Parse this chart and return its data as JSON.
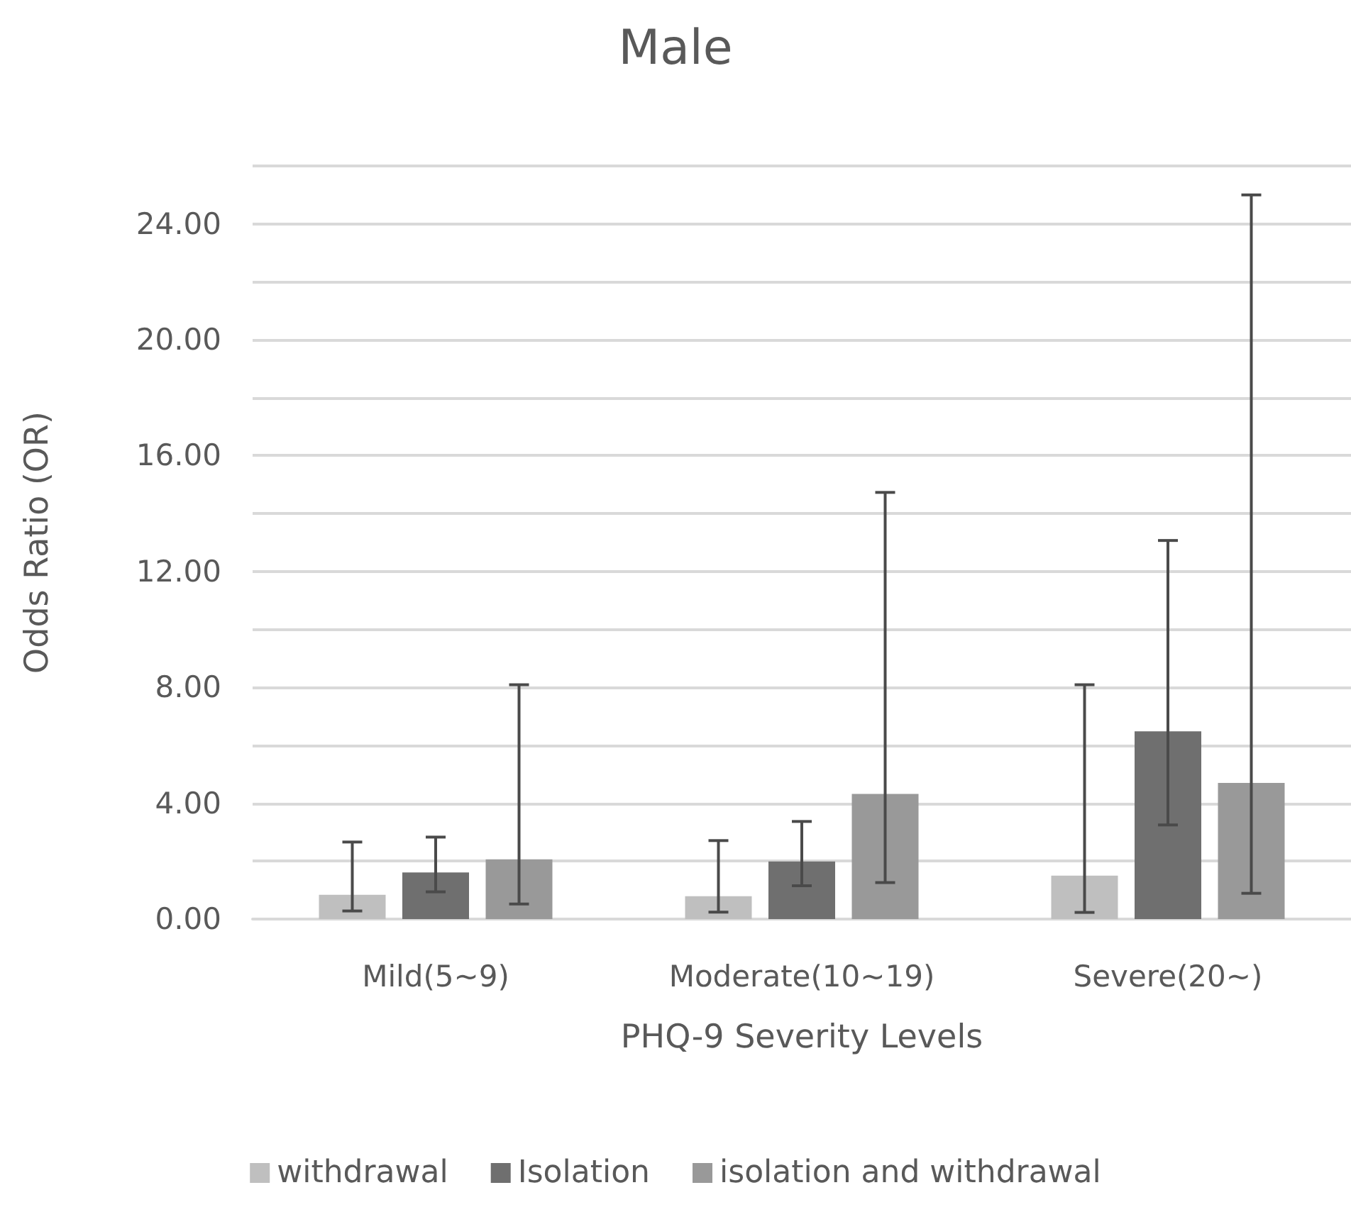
{
  "chart_data": {
    "type": "bar",
    "title": "Male",
    "xlabel": "PHQ-9 Severity Levels",
    "ylabel": "Odds Ratio (OR)",
    "categories": [
      "Mild(5~9)",
      "Moderate(10~19)",
      "Severe(20~)"
    ],
    "series": [
      {
        "name": "withdrawal",
        "color": "#bfbfbf",
        "values": [
          0.84,
          0.79,
          1.5
        ],
        "errors": [
          [
            0.28,
            2.66
          ],
          [
            0.24,
            2.71
          ],
          [
            0.23,
            8.09
          ]
        ]
      },
      {
        "name": "Isolation",
        "color": "#6f6f6f",
        "values": [
          1.61,
          1.99,
          6.48
        ],
        "errors": [
          [
            0.94,
            2.83
          ],
          [
            1.15,
            3.37
          ],
          [
            3.25,
            13.07
          ]
        ]
      },
      {
        "name": "isolation and withdrawal",
        "color": "#999999",
        "values": [
          2.06,
          4.32,
          4.7
        ],
        "errors": [
          [
            0.52,
            8.09
          ],
          [
            1.26,
            14.73
          ],
          [
            0.89,
            25.0
          ]
        ]
      }
    ],
    "ylim": [
      0,
      26
    ],
    "yticks": [
      {
        "value": 0,
        "label": "0.00"
      },
      {
        "value": 2,
        "label": null
      },
      {
        "value": 4,
        "label": "4.00"
      },
      {
        "value": 6,
        "label": null
      },
      {
        "value": 8,
        "label": "8.00"
      },
      {
        "value": 10,
        "label": null
      },
      {
        "value": 12,
        "label": "12.00"
      },
      {
        "value": 14,
        "label": null
      },
      {
        "value": 16,
        "label": "16.00"
      },
      {
        "value": 18,
        "label": null
      },
      {
        "value": 20,
        "label": "20.00"
      },
      {
        "value": 22,
        "label": null
      },
      {
        "value": 24,
        "label": "24.00"
      },
      {
        "value": 26,
        "label": null
      }
    ],
    "grid": "y",
    "legend": "bottom"
  }
}
